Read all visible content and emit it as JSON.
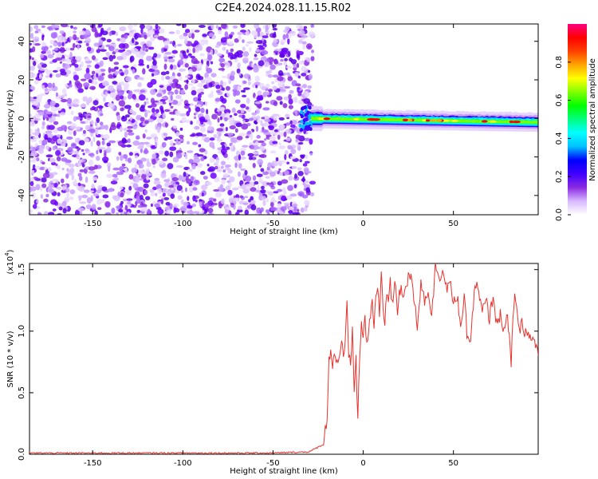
{
  "title": "C2E4.2024.028.11.15.R02",
  "chart_data": [
    {
      "type": "heatmap",
      "xlabel": "Height of straight line (km)",
      "ylabel": "Frequency (Hz)",
      "xlim": [
        -185,
        97
      ],
      "ylim": [
        -50,
        49
      ],
      "x_ticks": [
        -150,
        -100,
        -50,
        0,
        50
      ],
      "x_tick_labels": [
        "-150",
        "-100",
        "-50",
        "0",
        "50"
      ],
      "y_ticks": [
        -40,
        -20,
        0,
        20,
        40
      ],
      "y_tick_labels": [
        "-40",
        "-20",
        "0",
        "20",
        "40"
      ],
      "noise_region_x": [
        -185,
        -32
      ],
      "signal_region_x": [
        -32,
        97
      ],
      "carrier_frequency_hz": 0,
      "carrier_drift_hz_at_x_97": -2,
      "colorbar": {
        "label": "Normalized spectral amplitude",
        "range": [
          0,
          1
        ],
        "ticks": [
          0.0,
          0.2,
          0.4,
          0.6,
          0.8
        ],
        "tick_labels": [
          "0.0",
          "0.2",
          "0.4",
          "0.6",
          "0.8"
        ],
        "colormap": [
          "#ffffff",
          "#d8b8ff",
          "#8a2be2",
          "#4000ff",
          "#0000ff",
          "#00bfff",
          "#00ffff",
          "#00ff80",
          "#00ff00",
          "#80ff00",
          "#ffff00",
          "#ffa500",
          "#ff4000",
          "#ff0000",
          "#ff0080"
        ]
      }
    },
    {
      "type": "line",
      "xlabel": "Height of straight line (km)",
      "ylabel": "SNR (10 * v/v)",
      "y_scale_note": "(x10",
      "y_scale_exponent": "4",
      "xlim": [
        -185,
        97
      ],
      "ylim": [
        0,
        1.55
      ],
      "x_ticks": [
        -150,
        -100,
        -50,
        0,
        50
      ],
      "x_tick_labels": [
        "-150",
        "-100",
        "-50",
        "0",
        "50"
      ],
      "y_ticks": [
        0.0,
        0.5,
        1.0,
        1.5
      ],
      "y_tick_labels": [
        "0.0",
        "0.5",
        "1.0",
        "1.5"
      ],
      "color": "#e8332d",
      "series": [
        {
          "x": [
            -185,
            -150,
            -100,
            -50,
            -30,
            -22,
            -20,
            -19,
            -18,
            -17,
            -16,
            -15,
            -14,
            -13,
            -12,
            -11,
            -10,
            -9,
            -8,
            -7,
            -6,
            -5,
            -4,
            -3,
            -2,
            -1,
            0,
            1,
            2,
            3,
            4,
            5,
            6,
            7,
            8,
            9,
            10,
            11,
            12,
            13,
            14,
            15,
            16,
            17,
            18,
            19,
            20,
            22,
            24,
            26,
            28,
            30,
            32,
            34,
            36,
            38,
            40,
            42,
            44,
            46,
            48,
            50,
            52,
            54,
            56,
            58,
            60,
            62,
            64,
            66,
            68,
            70,
            72,
            74,
            76,
            78,
            80,
            82,
            84,
            86,
            88,
            90,
            92,
            94,
            96,
            97
          ],
          "y": [
            0.01,
            0.01,
            0.01,
            0.01,
            0.02,
            0.08,
            0.3,
            0.75,
            0.9,
            0.7,
            0.85,
            0.72,
            0.78,
            0.8,
            0.95,
            0.75,
            0.88,
            1.2,
            0.8,
            0.7,
            1.02,
            0.55,
            0.75,
            0.3,
            0.8,
            1.05,
            0.95,
            1.1,
            0.9,
            1.0,
            1.15,
            1.2,
            1.05,
            1.28,
            1.35,
            1.1,
            1.5,
            1.2,
            1.1,
            1.3,
            1.25,
            1.4,
            1.2,
            1.3,
            1.4,
            1.15,
            1.35,
            1.3,
            1.4,
            1.45,
            1.3,
            1.05,
            1.4,
            1.25,
            1.35,
            1.1,
            1.55,
            1.45,
            1.5,
            1.35,
            1.4,
            1.2,
            1.3,
            1.05,
            1.25,
            0.9,
            1.0,
            1.4,
            1.3,
            1.15,
            1.25,
            1.1,
            1.3,
            1.05,
            1.15,
            1.0,
            1.1,
            0.75,
            1.35,
            1.0,
            1.05,
            1.0,
            0.95,
            0.92,
            0.9,
            0.8
          ]
        }
      ]
    }
  ]
}
